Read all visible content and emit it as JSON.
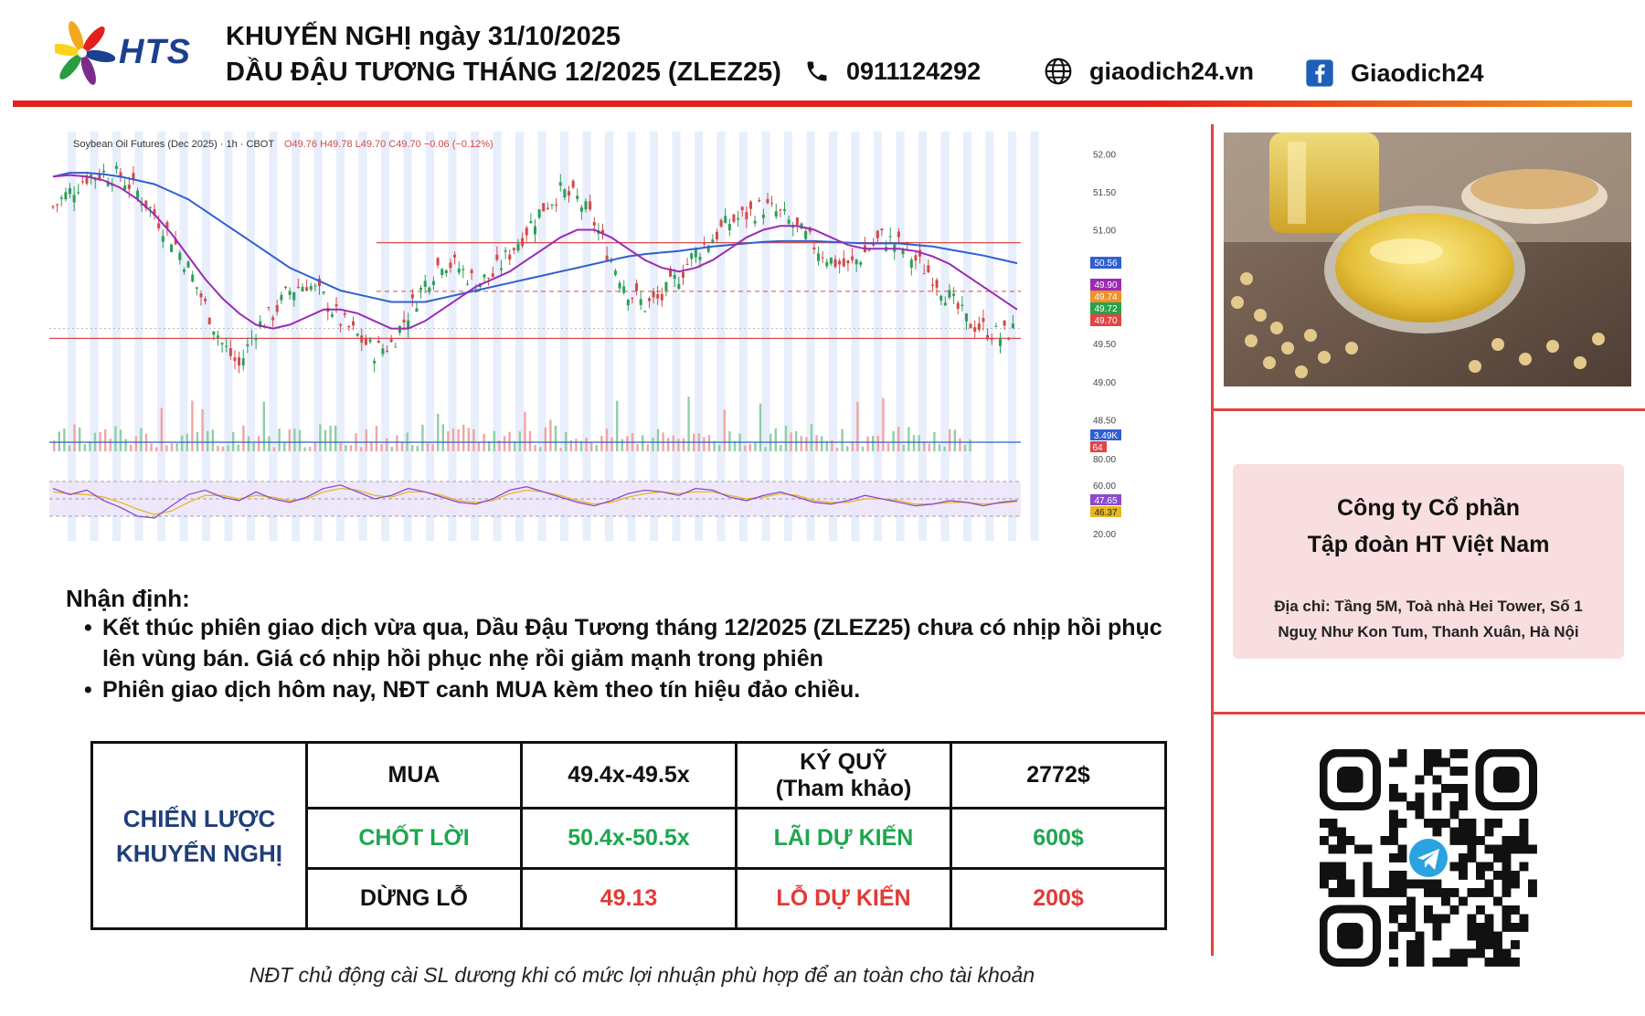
{
  "header": {
    "logo_text": "HTS",
    "title_line1": "KHUYẾN NGHỊ ngày 31/10/2025",
    "title_line2": "DẦU ĐẬU TƯƠNG THÁNG 12/2025 (ZLEZ25)",
    "phone": "0911124292",
    "website": "giaodich24.vn",
    "facebook": "Giaodich24",
    "icons": [
      "phone-icon",
      "globe-icon",
      "facebook-icon"
    ]
  },
  "chart": {
    "legend_title": "Soybean Oil Futures (Dec 2025) · 1h · CBOT",
    "legend_ohlc": "O49.76 H49.78 L49.70 C49.70 −0.06 (−0.12%)"
  },
  "chart_data": {
    "type": "line",
    "price_axis_ticks": [
      "52.00",
      "51.50",
      "51.00",
      "50.56",
      "49.90",
      "49.74",
      "49.72",
      "49.70",
      "49.50",
      "49.00",
      "48.50"
    ],
    "volume_labels": [
      "3.49K",
      "64"
    ],
    "oscillator_ticks": [
      "80.00",
      "60.00",
      "47.65",
      "46.37",
      "20.00"
    ],
    "price_labels_colors": {
      "50.56": "#2f5fd0",
      "49.90": "#9c2ab5",
      "49.74": "#f0902a",
      "49.72": "#2aa14a",
      "49.70": "#e04545",
      "3.49K": "#2f5fd0",
      "64": "#e04545",
      "47.65": "#8a4bd0",
      "46.37": "#e6b820"
    },
    "ylim": [
      48.3,
      52.1
    ],
    "resistance": 50.83,
    "mid_level": 50.19,
    "support": 49.57,
    "close": [
      51.3,
      51.5,
      51.7,
      51.75,
      51.7,
      51.5,
      51.2,
      50.9,
      50.5,
      50.0,
      49.5,
      49.2,
      49.7,
      49.9,
      50.2,
      50.3,
      50.1,
      49.8,
      49.6,
      49.4,
      49.5,
      49.9,
      50.3,
      50.6,
      50.5,
      50.3,
      50.4,
      50.7,
      51.0,
      51.3,
      51.5,
      51.4,
      51.1,
      50.6,
      50.2,
      50.0,
      50.1,
      50.4,
      50.7,
      50.9,
      51.1,
      51.2,
      51.3,
      51.2,
      51.0,
      50.8,
      50.6,
      50.5,
      50.7,
      50.9,
      50.8,
      50.6,
      50.4,
      50.1,
      49.8,
      49.7,
      49.6,
      49.7
    ],
    "sma_purple": [
      51.7,
      51.72,
      51.7,
      51.65,
      51.55,
      51.4,
      51.2,
      50.95,
      50.65,
      50.35,
      50.1,
      49.9,
      49.75,
      49.7,
      49.75,
      49.85,
      49.95,
      49.95,
      49.9,
      49.8,
      49.7,
      49.7,
      49.8,
      49.95,
      50.1,
      50.25,
      50.35,
      50.45,
      50.6,
      50.75,
      50.9,
      51.0,
      51.0,
      50.9,
      50.75,
      50.6,
      50.5,
      50.45,
      50.5,
      50.6,
      50.75,
      50.9,
      51.0,
      51.05,
      51.05,
      51.0,
      50.9,
      50.8,
      50.75,
      50.75,
      50.75,
      50.72,
      50.65,
      50.55,
      50.4,
      50.25,
      50.1,
      49.95
    ],
    "sma_blue": [
      51.7,
      51.75,
      51.75,
      51.73,
      51.7,
      51.65,
      51.6,
      51.5,
      51.4,
      51.25,
      51.1,
      50.95,
      50.8,
      50.65,
      50.5,
      50.4,
      50.3,
      50.2,
      50.15,
      50.1,
      50.05,
      50.05,
      50.05,
      50.1,
      50.15,
      50.2,
      50.25,
      50.3,
      50.35,
      50.4,
      50.45,
      50.5,
      50.55,
      50.6,
      50.65,
      50.68,
      50.7,
      50.72,
      50.75,
      50.78,
      50.8,
      50.82,
      50.84,
      50.85,
      50.85,
      50.85,
      50.84,
      50.83,
      50.82,
      50.82,
      50.82,
      50.8,
      50.78,
      50.74,
      50.7,
      50.66,
      50.61,
      50.56
    ],
    "oscillator": [
      62,
      55,
      60,
      48,
      40,
      30,
      28,
      42,
      55,
      60,
      52,
      48,
      58,
      50,
      46,
      52,
      62,
      66,
      58,
      50,
      54,
      62,
      58,
      52,
      46,
      44,
      50,
      60,
      64,
      58,
      52,
      46,
      42,
      48,
      56,
      60,
      58,
      54,
      62,
      60,
      52,
      48,
      54,
      58,
      52,
      46,
      44,
      48,
      54,
      50,
      46,
      42,
      44,
      48,
      46,
      42,
      46,
      48
    ],
    "oscillator_signal": [
      58,
      56,
      55,
      52,
      46,
      38,
      32,
      36,
      46,
      54,
      54,
      50,
      54,
      52,
      48,
      50,
      58,
      62,
      60,
      54,
      52,
      58,
      58,
      54,
      48,
      46,
      48,
      56,
      60,
      58,
      54,
      48,
      44,
      46,
      52,
      56,
      58,
      56,
      58,
      58,
      54,
      50,
      52,
      56,
      54,
      48,
      46,
      46,
      50,
      50,
      48,
      44,
      44,
      46,
      46,
      44,
      45,
      47
    ]
  },
  "analysis": {
    "title": "Nhận định:",
    "bullets": [
      "Kết thúc phiên giao dịch vừa qua, Dầu Đậu Tương tháng 12/2025 (ZLEZ25) chưa có nhịp hồi phục lên vùng bán. Giá có nhịp hồi phục nhẹ rồi giảm mạnh trong phiên",
      "Phiên giao dịch hôm nay, NĐT canh MUA kèm theo tín hiệu đảo chiều."
    ]
  },
  "strategy": {
    "label_line1": "CHIẾN LƯỢC",
    "label_line2": "KHUYẾN NGHỊ",
    "buy_label": "MUA",
    "buy_value": "49.4x-49.5x",
    "margin_label_line1": "KÝ QUỸ",
    "margin_label_line2": "(Tham khảo)",
    "margin_value": "2772$",
    "tp_label": "CHỐT LỜI",
    "tp_value": "50.4x-50.5x",
    "profit_label": "LÃI DỰ KIẾN",
    "profit_value": "600$",
    "sl_label": "DỪNG LỖ",
    "sl_value": "49.13",
    "loss_label": "LỖ DỰ KIẾN",
    "loss_value": "200$",
    "footnote": "NĐT chủ động cài SL dương khi có mức lợi nhuận phù hợp để an toàn cho tài khoản"
  },
  "company": {
    "name_line1": "Công ty Cổ phần",
    "name_line2": "Tập đoàn HT Việt Nam",
    "address_line1": "Địa chỉ: Tầng 5M, Toà nhà Hei Tower, Số 1",
    "address_line2": "Nguỵ Như Kon Tum, Thanh Xuân, Hà Nội"
  },
  "qr": {
    "icon": "telegram-icon"
  },
  "colors": {
    "accent_red": "#e3201b",
    "accent_orange": "#f39a1e",
    "navy": "#1f3e7a",
    "green": "#1fa650",
    "red": "#e23a36",
    "company_bg": "#f9dee0"
  }
}
